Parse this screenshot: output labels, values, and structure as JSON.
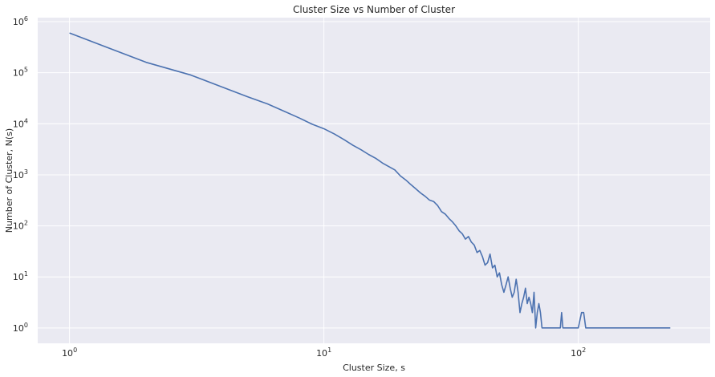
{
  "chart_data": {
    "type": "line",
    "title": "Cluster Size vs Number of Cluster",
    "xlabel": "Cluster Size, s",
    "ylabel": "Number of Cluster, N(s)",
    "xscale": "log",
    "yscale": "log",
    "xlim": [
      0.75,
      330
    ],
    "ylim": [
      0.5,
      1200000
    ],
    "grid": true,
    "legend": "none",
    "colors": {
      "background": "#eaeaf2",
      "grid": "#ffffff",
      "line": "#4c72b0",
      "text": "#262626"
    },
    "x_ticks": [
      {
        "value": 1,
        "base": "10",
        "exp": "0"
      },
      {
        "value": 10,
        "base": "10",
        "exp": "1"
      },
      {
        "value": 100,
        "base": "10",
        "exp": "2"
      }
    ],
    "y_ticks": [
      {
        "value": 1,
        "base": "10",
        "exp": "0"
      },
      {
        "value": 10,
        "base": "10",
        "exp": "1"
      },
      {
        "value": 100,
        "base": "10",
        "exp": "2"
      },
      {
        "value": 1000,
        "base": "10",
        "exp": "3"
      },
      {
        "value": 10000,
        "base": "10",
        "exp": "4"
      },
      {
        "value": 100000,
        "base": "10",
        "exp": "5"
      },
      {
        "value": 1000000,
        "base": "10",
        "exp": "6"
      }
    ],
    "series": [
      {
        "x": [
          1,
          2,
          3,
          4,
          5,
          6,
          7,
          8,
          9,
          10,
          11,
          12,
          13,
          14,
          15,
          16,
          17,
          18,
          19,
          20,
          21,
          22,
          23,
          24,
          25,
          26,
          27,
          28,
          29,
          30,
          31,
          32,
          33,
          34,
          35,
          36,
          37,
          38,
          39,
          40,
          41,
          42,
          43,
          44,
          45,
          46,
          47,
          48,
          49,
          50,
          51,
          52,
          53,
          54,
          55,
          56,
          57,
          58,
          59,
          60,
          61,
          62,
          63,
          64,
          65,
          66,
          67,
          68,
          69,
          70,
          71,
          72,
          75,
          80,
          85,
          86,
          87,
          90,
          95,
          100,
          103,
          105,
          107,
          110,
          120,
          150,
          180,
          200,
          230
        ],
        "y": [
          600000,
          160000,
          90000,
          52000,
          34000,
          24500,
          17500,
          13000,
          9800,
          8000,
          6300,
          4900,
          3800,
          3100,
          2500,
          2100,
          1700,
          1450,
          1250,
          950,
          790,
          640,
          530,
          440,
          380,
          320,
          300,
          250,
          190,
          170,
          140,
          120,
          100,
          80,
          70,
          55,
          62,
          48,
          42,
          30,
          33,
          25,
          17,
          19,
          28,
          15,
          17,
          10,
          12,
          7,
          5,
          7,
          10,
          6,
          4,
          5,
          9,
          5,
          2,
          3,
          4,
          6,
          3,
          4,
          3,
          2,
          5,
          1,
          2,
          3,
          2,
          1,
          1,
          1,
          1,
          2,
          1,
          1,
          1,
          1,
          2,
          2,
          1,
          1,
          1,
          1,
          1,
          1,
          1
        ]
      }
    ]
  }
}
